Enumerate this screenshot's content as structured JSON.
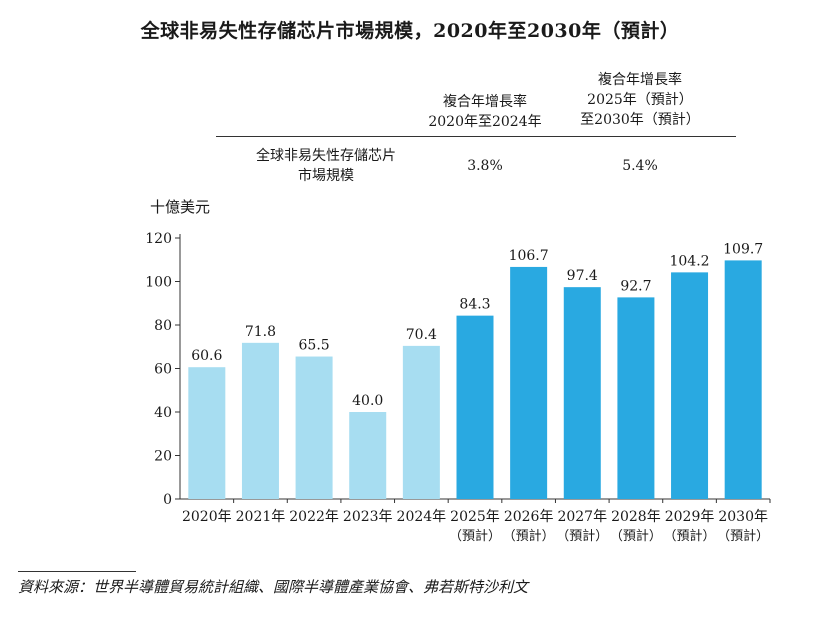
{
  "title": "全球非易失性存儲芯片市場規模，2020年至2030年（預計）",
  "summary_table": {
    "col1_header": [
      "複合年增長率",
      "2020年至2024年"
    ],
    "col2_header": [
      "複合年增長率",
      "2025年（預計）",
      "至2030年（預計）"
    ],
    "row_label": [
      "全球非易失性存儲芯片",
      "市場規模"
    ],
    "col1_value": "3.8%",
    "col2_value": "5.4%"
  },
  "unit_label": "十億美元",
  "source_text": "資料來源：世界半導體貿易統計組織、國際半導體產業協會、弗若斯特沙利文",
  "colors": {
    "historical": "#a7ddf1",
    "forecast": "#29a9e1",
    "text": "#1a1a1a"
  },
  "chart_data": {
    "type": "bar",
    "title": "全球非易失性存儲芯片市場規模，2020年至2030年（預計）",
    "ylabel": "十億美元",
    "xlabel": "",
    "ylim": [
      0,
      120
    ],
    "yticks": [
      0,
      20,
      40,
      60,
      80,
      100,
      120
    ],
    "categories": [
      "2020年",
      "2021年",
      "2022年",
      "2023年",
      "2024年",
      "2025年",
      "2026年",
      "2027年",
      "2028年",
      "2029年",
      "2030年"
    ],
    "category_notes": [
      "",
      "",
      "",
      "",
      "",
      "（預計）",
      "（預計）",
      "（預計）",
      "（預計）",
      "（預計）",
      "（預計）"
    ],
    "values": [
      60.6,
      71.8,
      65.5,
      40.0,
      70.4,
      84.3,
      106.7,
      97.4,
      92.7,
      104.2,
      109.7
    ],
    "value_labels": [
      "60.6",
      "71.8",
      "65.5",
      "40.0",
      "70.4",
      "84.3",
      "106.7",
      "97.4",
      "92.7",
      "104.2",
      "109.7"
    ],
    "forecast": [
      false,
      false,
      false,
      false,
      false,
      true,
      true,
      true,
      true,
      true,
      true
    ]
  }
}
